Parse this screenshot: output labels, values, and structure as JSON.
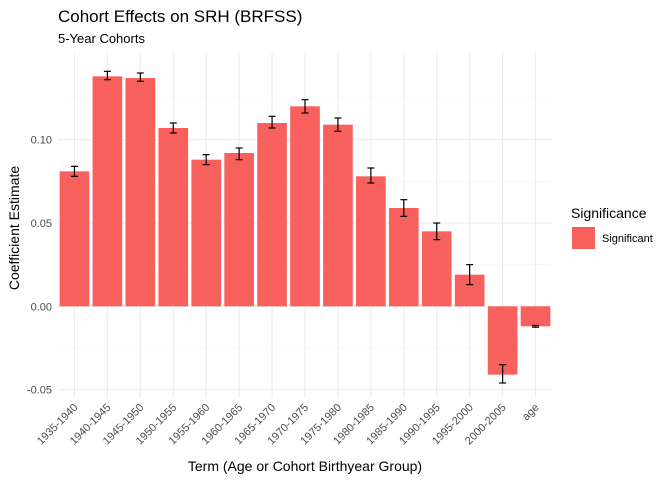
{
  "chart_data": {
    "type": "bar",
    "title": "Cohort Effects on SRH (BRFSS)",
    "subtitle": "5-Year Cohorts",
    "xlabel": "Term (Age or Cohort Birthyear Group)",
    "ylabel": "Coefficient Estimate",
    "ylim": [
      -0.055,
      0.152
    ],
    "yticks": [
      -0.05,
      0.0,
      0.05,
      0.1
    ],
    "ytick_labels": [
      "-0.05",
      "0.00",
      "0.05",
      "0.10"
    ],
    "grid": true,
    "categories": [
      "1935-1940",
      "1940-1945",
      "1945-1950",
      "1950-1955",
      "1955-1960",
      "1960-1965",
      "1965-1970",
      "1970-1975",
      "1975-1980",
      "1980-1985",
      "1985-1990",
      "1990-1995",
      "1995-2000",
      "2000-2005",
      "age"
    ],
    "series": [
      {
        "name": "Significant",
        "color": "#f8605d",
        "values": [
          0.081,
          0.138,
          0.137,
          0.107,
          0.088,
          0.092,
          0.11,
          0.12,
          0.109,
          0.078,
          0.059,
          0.045,
          0.019,
          -0.041,
          -0.012
        ],
        "error_low": [
          0.078,
          0.136,
          0.135,
          0.104,
          0.085,
          0.088,
          0.107,
          0.116,
          0.105,
          0.074,
          0.054,
          0.04,
          0.013,
          -0.046,
          -0.0125
        ],
        "error_high": [
          0.084,
          0.141,
          0.14,
          0.11,
          0.091,
          0.095,
          0.114,
          0.124,
          0.113,
          0.083,
          0.064,
          0.05,
          0.025,
          -0.035,
          -0.0115
        ]
      }
    ],
    "legend": {
      "title": "Significance",
      "position": "right",
      "items": [
        {
          "label": "Significant",
          "color": "#f8605d"
        }
      ]
    }
  }
}
